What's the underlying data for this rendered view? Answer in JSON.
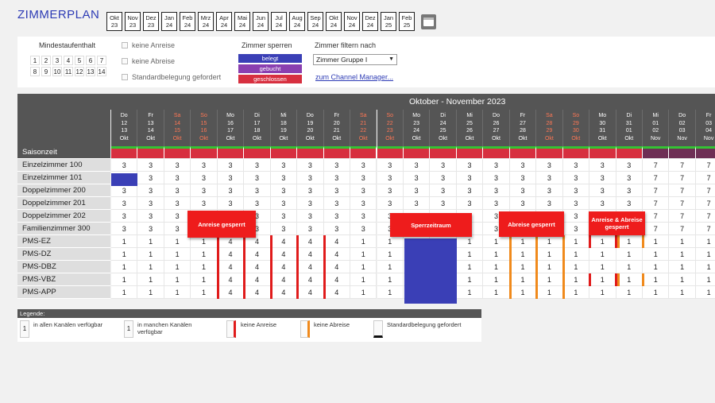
{
  "app_title": "ZIMMERPLAN",
  "months": [
    [
      "Okt",
      "23"
    ],
    [
      "Nov",
      "23"
    ],
    [
      "Dez",
      "23"
    ],
    [
      "Jan",
      "24"
    ],
    [
      "Feb",
      "24"
    ],
    [
      "Mrz",
      "24"
    ],
    [
      "Apr",
      "24"
    ],
    [
      "Mai",
      "24"
    ],
    [
      "Jun",
      "24"
    ],
    [
      "Jul",
      "24"
    ],
    [
      "Aug",
      "24"
    ],
    [
      "Sep",
      "24"
    ],
    [
      "Okt",
      "24"
    ],
    [
      "Nov",
      "24"
    ],
    [
      "Dez",
      "24"
    ],
    [
      "Jan",
      "25"
    ],
    [
      "Feb",
      "25"
    ]
  ],
  "calendar_icon": "calendar-icon",
  "filters": {
    "min_stay_label": "Mindestaufenthalt",
    "min_stay_values": [
      "1",
      "2",
      "3",
      "4",
      "5",
      "6",
      "7",
      "8",
      "9",
      "10",
      "11",
      "12",
      "13",
      "14"
    ],
    "checkboxes": [
      "keine Anreise",
      "keine Abreise",
      "Standardbelegung gefordert"
    ],
    "sperren_label": "Zimmer sperren",
    "sperren_buttons": [
      {
        "label": "belegt",
        "color": "#3a3fb6"
      },
      {
        "label": "gebucht",
        "color": "#8a3fb0"
      },
      {
        "label": "geschlossen",
        "color": "#d72f3f"
      }
    ],
    "filter_label": "Zimmer filtern nach",
    "filter_value": "Zimmer Gruppe I",
    "channel_link": "zum Channel Manager..."
  },
  "grid": {
    "month_title": "Oktober - November 2023",
    "days": [
      {
        "wd": "Do",
        "d": "12",
        "d2": "13",
        "m": "Okt",
        "we": false
      },
      {
        "wd": "Fr",
        "d": "13",
        "d2": "14",
        "m": "Okt",
        "we": false
      },
      {
        "wd": "Sa",
        "d": "14",
        "d2": "15",
        "m": "Okt",
        "we": true
      },
      {
        "wd": "So",
        "d": "15",
        "d2": "16",
        "m": "Okt",
        "we": true
      },
      {
        "wd": "Mo",
        "d": "16",
        "d2": "17",
        "m": "Okt",
        "we": false
      },
      {
        "wd": "Di",
        "d": "17",
        "d2": "18",
        "m": "Okt",
        "we": false
      },
      {
        "wd": "Mi",
        "d": "18",
        "d2": "19",
        "m": "Okt",
        "we": false
      },
      {
        "wd": "Do",
        "d": "19",
        "d2": "20",
        "m": "Okt",
        "we": false
      },
      {
        "wd": "Fr",
        "d": "20",
        "d2": "21",
        "m": "Okt",
        "we": false
      },
      {
        "wd": "Sa",
        "d": "21",
        "d2": "22",
        "m": "Okt",
        "we": true
      },
      {
        "wd": "So",
        "d": "22",
        "d2": "23",
        "m": "Okt",
        "we": true
      },
      {
        "wd": "Mo",
        "d": "23",
        "d2": "24",
        "m": "Okt",
        "we": false
      },
      {
        "wd": "Di",
        "d": "24",
        "d2": "25",
        "m": "Okt",
        "we": false
      },
      {
        "wd": "Mi",
        "d": "25",
        "d2": "26",
        "m": "Okt",
        "we": false
      },
      {
        "wd": "Do",
        "d": "26",
        "d2": "27",
        "m": "Okt",
        "we": false
      },
      {
        "wd": "Fr",
        "d": "27",
        "d2": "28",
        "m": "Okt",
        "we": false
      },
      {
        "wd": "Sa",
        "d": "28",
        "d2": "29",
        "m": "Okt",
        "we": true
      },
      {
        "wd": "So",
        "d": "29",
        "d2": "30",
        "m": "Okt",
        "we": true
      },
      {
        "wd": "Mo",
        "d": "30",
        "d2": "31",
        "m": "Okt",
        "we": false
      },
      {
        "wd": "Di",
        "d": "31",
        "d2": "01",
        "m": "Okt",
        "we": false
      },
      {
        "wd": "Mi",
        "d": "01",
        "d2": "02",
        "m": "Nov",
        "we": false
      },
      {
        "wd": "Do",
        "d": "02",
        "d2": "03",
        "m": "Nov",
        "we": false
      },
      {
        "wd": "Fr",
        "d": "03",
        "d2": "04",
        "m": "Nov",
        "we": false
      }
    ],
    "saison_label": "Saisonzeit",
    "rooms": [
      {
        "name": "Einzelzimmer 100",
        "values": [
          "3",
          "3",
          "3",
          "3",
          "3",
          "3",
          "3",
          "3",
          "3",
          "3",
          "3",
          "3",
          "3",
          "3",
          "3",
          "3",
          "3",
          "3",
          "3",
          "3",
          "7",
          "7",
          "7"
        ]
      },
      {
        "name": "Einzelzimmer 101",
        "values": [
          "",
          "3",
          "3",
          "3",
          "3",
          "3",
          "3",
          "3",
          "3",
          "3",
          "3",
          "3",
          "3",
          "3",
          "3",
          "3",
          "3",
          "3",
          "3",
          "3",
          "7",
          "7",
          "7"
        ]
      },
      {
        "name": "Doppelzimmer 200",
        "values": [
          "3",
          "3",
          "3",
          "3",
          "3",
          "3",
          "3",
          "3",
          "3",
          "3",
          "3",
          "3",
          "3",
          "3",
          "3",
          "3",
          "3",
          "3",
          "3",
          "3",
          "7",
          "7",
          "7"
        ]
      },
      {
        "name": "Doppelzimmer 201",
        "values": [
          "3",
          "3",
          "3",
          "3",
          "3",
          "3",
          "3",
          "3",
          "3",
          "3",
          "3",
          "3",
          "3",
          "3",
          "3",
          "3",
          "3",
          "3",
          "3",
          "3",
          "7",
          "7",
          "7"
        ]
      },
      {
        "name": "Doppelzimmer 202",
        "values": [
          "3",
          "3",
          "3",
          "3",
          "3",
          "3",
          "3",
          "3",
          "3",
          "3",
          "3",
          "3",
          "3",
          "3",
          "3",
          "3",
          "3",
          "3",
          "3",
          "3",
          "7",
          "7",
          "7"
        ]
      },
      {
        "name": "Familienzimmer 300",
        "values": [
          "3",
          "3",
          "3",
          "3",
          "3",
          "3",
          "3",
          "3",
          "3",
          "3",
          "3",
          "3",
          "3",
          "3",
          "3",
          "3",
          "3",
          "3",
          "3",
          "3",
          "7",
          "7",
          "7"
        ]
      }
    ],
    "pms": [
      {
        "name": "PMS-EZ",
        "values": [
          "1",
          "1",
          "1",
          "1",
          "4",
          "4",
          "4",
          "4",
          "4",
          "1",
          "1",
          "",
          "",
          "1",
          "1",
          "1",
          "1",
          "1",
          "1",
          "1",
          "1",
          "1",
          "1"
        ]
      },
      {
        "name": "PMS-DZ",
        "values": [
          "1",
          "1",
          "1",
          "1",
          "4",
          "4",
          "4",
          "4",
          "4",
          "1",
          "1",
          "",
          "",
          "1",
          "1",
          "1",
          "1",
          "1",
          "1",
          "1",
          "1",
          "1",
          "1"
        ]
      },
      {
        "name": "PMS-DBZ",
        "values": [
          "1",
          "1",
          "1",
          "1",
          "4",
          "4",
          "4",
          "4",
          "4",
          "1",
          "1",
          "",
          "",
          "1",
          "1",
          "1",
          "1",
          "1",
          "1",
          "1",
          "1",
          "1",
          "1"
        ]
      },
      {
        "name": "PMS-VBZ",
        "values": [
          "1",
          "1",
          "1",
          "1",
          "4",
          "4",
          "4",
          "4",
          "4",
          "1",
          "1",
          "",
          "",
          "1",
          "1",
          "1",
          "1",
          "1",
          "1",
          "1",
          "1",
          "1",
          "1"
        ]
      },
      {
        "name": "PMS-APP",
        "values": [
          "1",
          "1",
          "1",
          "1",
          "4",
          "4",
          "4",
          "4",
          "4",
          "1",
          "1",
          "",
          "",
          "1",
          "1",
          "1",
          "1",
          "1",
          "1",
          "1",
          "1",
          "1",
          "1"
        ]
      }
    ],
    "overlays": {
      "anreise": "Anreise gesperrt",
      "sperrzeitraum": "Sperrzeitraum",
      "abreise": "Abreise gesperrt",
      "beide": "Anreise & Abreise gesperrt"
    }
  },
  "legend": {
    "title": "Legende:",
    "items": [
      "in allen Kanälen verfügbar",
      "in manchen Kanälen verfügbar",
      "keine Anreise",
      "keine Abreise",
      "Standardbelegung gefordert"
    ]
  }
}
